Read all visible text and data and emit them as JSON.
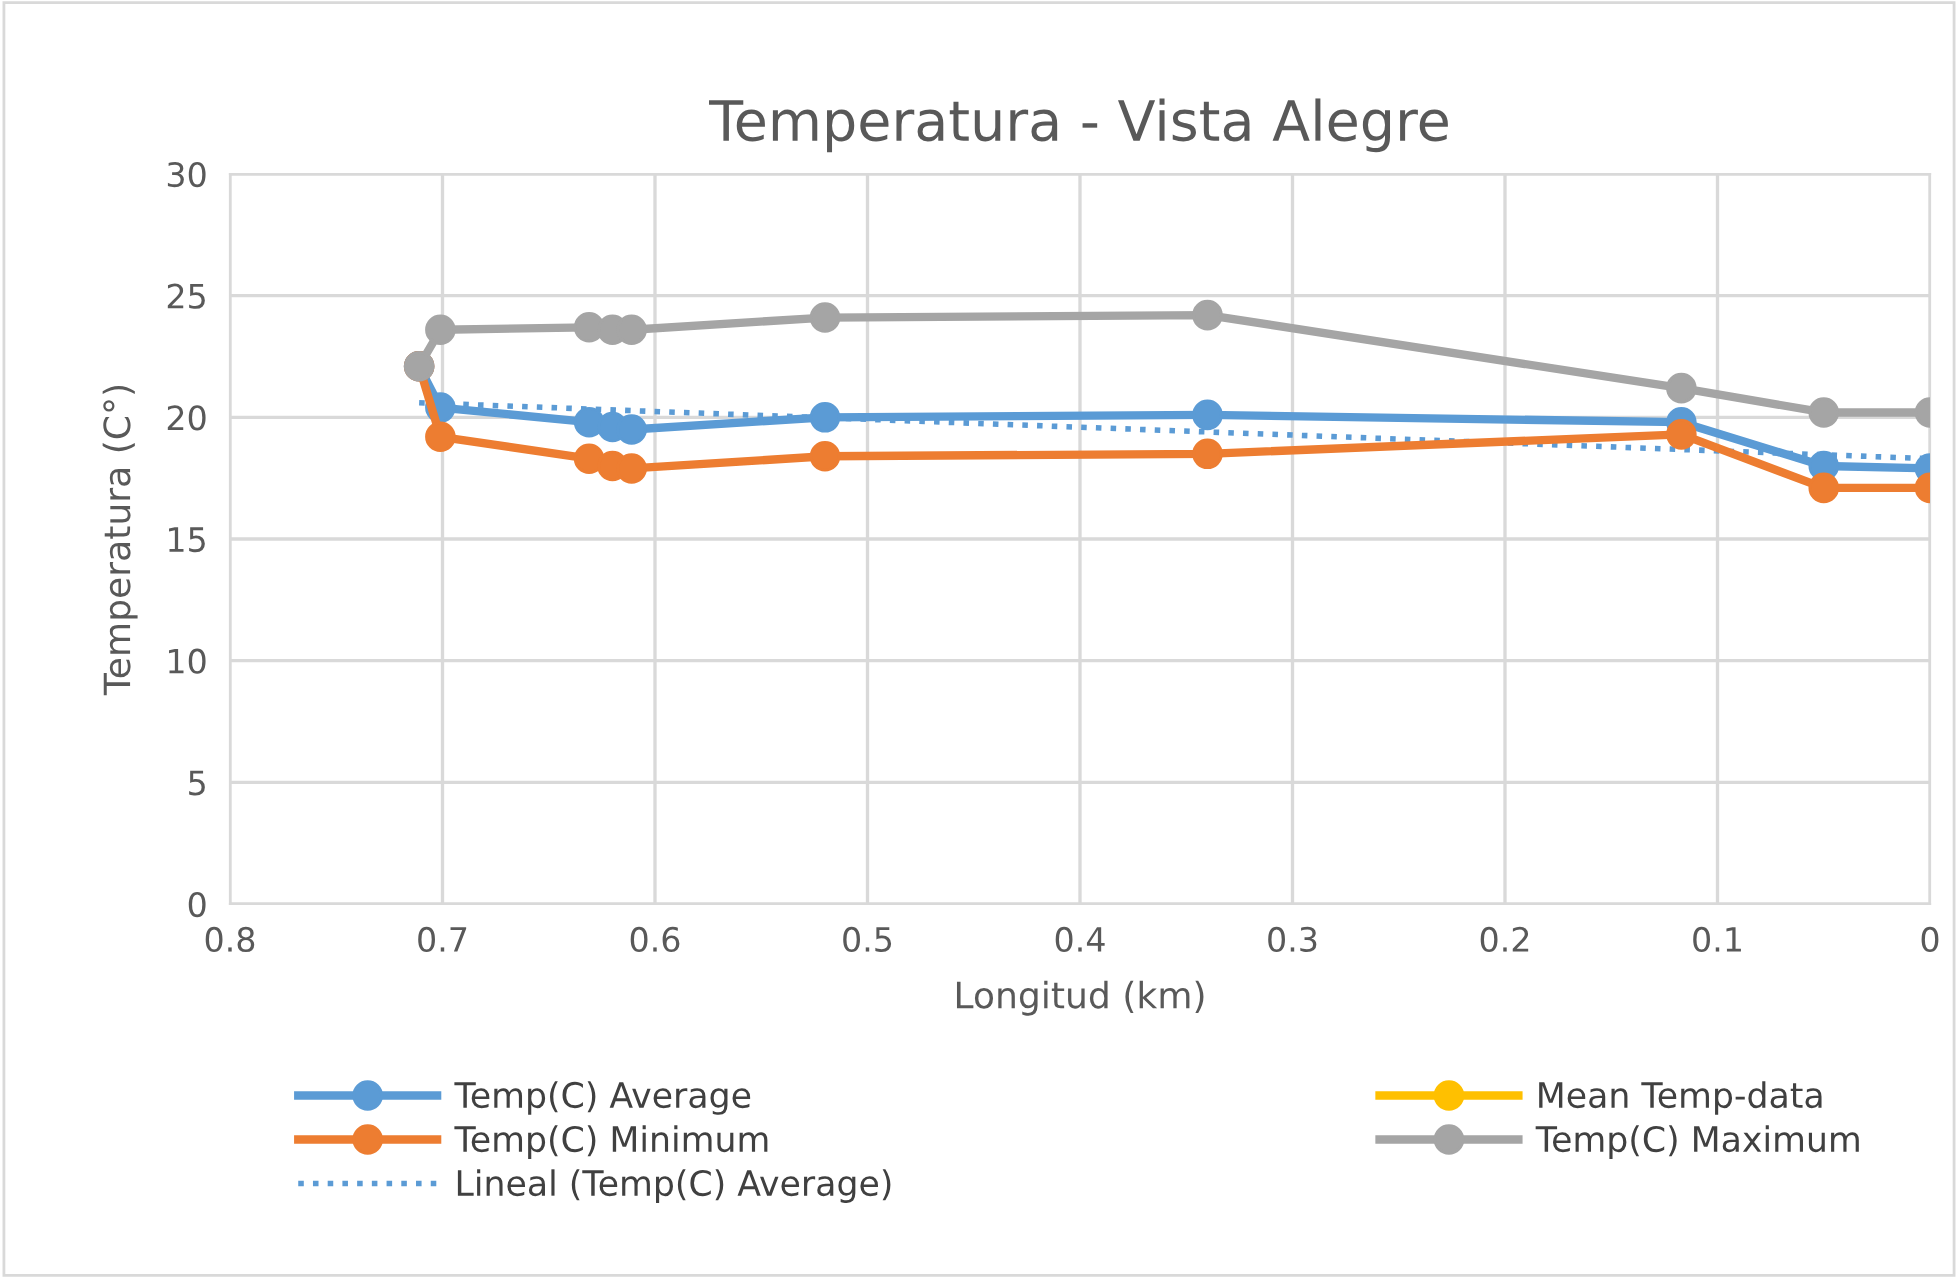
{
  "chart_data": {
    "type": "line",
    "title": "Temperatura - Vista Alegre",
    "xlabel": "Longitud (km)",
    "ylabel": "Temperatura (C°)",
    "x": [
      0.711,
      0.701,
      0.631,
      0.62,
      0.611,
      0.52,
      0.34,
      0.117,
      0.05,
      0.0
    ],
    "xlim": [
      0.8,
      0
    ],
    "xticks": [
      0.8,
      0.7,
      0.6,
      0.5,
      0.4,
      0.3,
      0.2,
      0.1,
      0
    ],
    "ylim": [
      0,
      30
    ],
    "yticks": [
      0,
      5,
      10,
      15,
      20,
      25,
      30
    ],
    "grid": true,
    "legend": "bottom",
    "marker": "circle",
    "series": [
      {
        "name": "Temp(C) Average",
        "color": "#5b9bd5",
        "values": [
          22.1,
          20.4,
          19.8,
          19.6,
          19.5,
          20.0,
          20.1,
          19.8,
          18.0,
          17.9
        ]
      },
      {
        "name": "Temp(C) Minimum",
        "color": "#ed7d31",
        "values": [
          22.1,
          19.2,
          18.3,
          18.0,
          17.9,
          18.4,
          18.5,
          19.3,
          17.1,
          17.1
        ]
      },
      {
        "name": "Lineal (Temp(C) Average)",
        "color": "#5b9bd5",
        "x": [
          0.711,
          0.0
        ],
        "values": [
          20.6,
          18.3
        ],
        "line_style": "dotted",
        "marker": "none"
      },
      {
        "name": "Mean Temp-data",
        "color": "#ffc000",
        "values": [
          null,
          null,
          null,
          null,
          null,
          null,
          null,
          null,
          null,
          null
        ]
      },
      {
        "name": "Temp(C) Maximum",
        "color": "#a5a5a5",
        "values": [
          22.1,
          23.6,
          23.7,
          23.6,
          23.6,
          24.1,
          24.2,
          21.2,
          20.2,
          20.2
        ]
      }
    ]
  }
}
